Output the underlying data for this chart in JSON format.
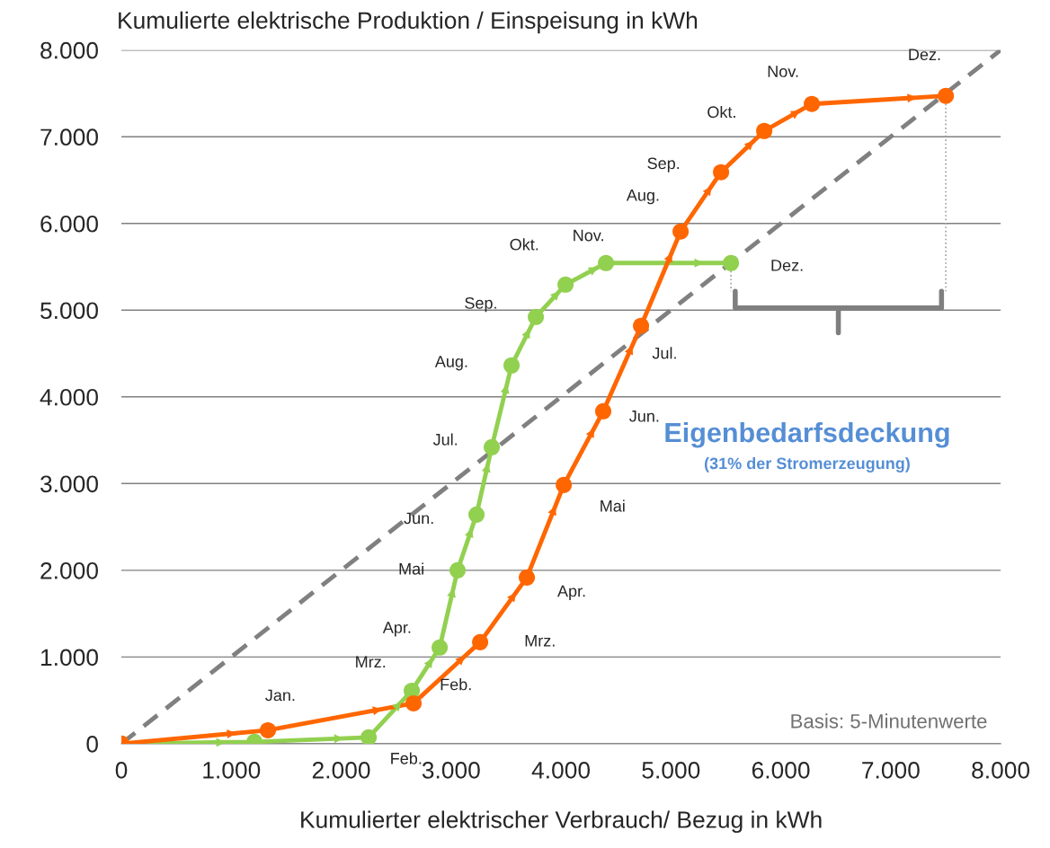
{
  "chart_data": {
    "type": "line",
    "title": "Kumulierte elektrische Produktion / Einspeisung in kWh",
    "xlabel": "Kumulierter elektrischer Verbrauch/ Bezug in kWh",
    "xlim": [
      0,
      8000
    ],
    "ylim": [
      0,
      8000
    ],
    "xticks": [
      0,
      {
        "value": 1000,
        "label": "1.000"
      },
      {
        "value": 2000,
        "label": "2.000"
      },
      {
        "value": 3000,
        "label": "3.000"
      },
      {
        "value": 4000,
        "label": "4.000"
      },
      {
        "value": 5000,
        "label": "5.000"
      },
      {
        "value": 6000,
        "label": "6.000"
      },
      {
        "value": 7000,
        "label": "7.000"
      },
      {
        "value": 8000,
        "label": "8.000"
      }
    ],
    "yticks": [
      0,
      {
        "value": 1000,
        "label": "1.000"
      },
      {
        "value": 2000,
        "label": "2.000"
      },
      {
        "value": 3000,
        "label": "3.000"
      },
      {
        "value": 4000,
        "label": "4.000"
      },
      {
        "value": 5000,
        "label": "5.000"
      },
      {
        "value": 6000,
        "label": "6.000"
      },
      {
        "value": 7000,
        "label": "7.000"
      },
      {
        "value": 8000,
        "label": "8.000"
      }
    ],
    "grid": "y",
    "legend": false,
    "series": [
      {
        "type": "line",
        "color": "#808080",
        "line_style": "dashed",
        "marker": "none",
        "x": [
          0,
          8000
        ],
        "values": [
          0,
          8000
        ]
      },
      {
        "type": "line",
        "color": "#92d050",
        "marker": "circle",
        "line_style": "solid",
        "x": [
          0,
          1211,
          2250,
          2642,
          2896,
          3059,
          3231,
          3370,
          3550,
          3771,
          4041,
          4409,
          5546
        ],
        "values": [
          0,
          21,
          73,
          611,
          1109,
          2000,
          2642,
          3420,
          4363,
          4922,
          5295,
          5544,
          5544
        ]
      },
      {
        "type": "line",
        "color": "#ff6600",
        "marker": "circle",
        "line_style": "solid",
        "x": [
          0,
          1333,
          2658,
          3264,
          3689,
          4025,
          4384,
          4728,
          5088,
          5456,
          5849,
          6282,
          7501
        ],
        "values": [
          0,
          155,
          466,
          1171,
          1917,
          2984,
          3834,
          4819,
          5907,
          6591,
          7067,
          7378,
          7472
        ]
      }
    ],
    "annotations": [
      {
        "text": "Jan.",
        "x": 1333,
        "y": 155
      },
      {
        "text": "Feb.",
        "x": 2658,
        "y": 466
      },
      {
        "text": "Mrz.",
        "x": 3264,
        "y": 1171
      },
      {
        "text": "Apr.",
        "x": 3689,
        "y": 1917
      },
      {
        "text": "Mai",
        "x": 4025,
        "y": 2984
      },
      {
        "text": "Jun.",
        "x": 4384,
        "y": 3834
      },
      {
        "text": "Jul.",
        "x": 4728,
        "y": 4819
      },
      {
        "text": "Aug.",
        "x": 5088,
        "y": 5907
      },
      {
        "text": "Sep.",
        "x": 5456,
        "y": 6591
      },
      {
        "text": "Okt.",
        "x": 5849,
        "y": 7067
      },
      {
        "text": "Nov.",
        "x": 6282,
        "y": 7378
      },
      {
        "text": "Dez.",
        "x": 7501,
        "y": 7472
      },
      {
        "text": "Feb.",
        "x": 2250,
        "y": 73
      },
      {
        "text": "Mrz.",
        "x": 2642,
        "y": 611
      },
      {
        "text": "Apr.",
        "x": 2896,
        "y": 1109
      },
      {
        "text": "Mai",
        "x": 3059,
        "y": 2000
      },
      {
        "text": "Jun.",
        "x": 3231,
        "y": 2642
      },
      {
        "text": "Jul.",
        "x": 3370,
        "y": 3420
      },
      {
        "text": "Aug.",
        "x": 3550,
        "y": 4363
      },
      {
        "text": "Sep.",
        "x": 3771,
        "y": 4922
      },
      {
        "text": "Okt.",
        "x": 4041,
        "y": 5295
      },
      {
        "text": "Nov.",
        "x": 4409,
        "y": 5544
      },
      {
        "text": "Dez.",
        "x": 5546,
        "y": 5544
      },
      "Eigenbedarfsdeckung",
      "(31% der Stromerzeugung)",
      "Basis: 5-Minutenwerte"
    ]
  }
}
